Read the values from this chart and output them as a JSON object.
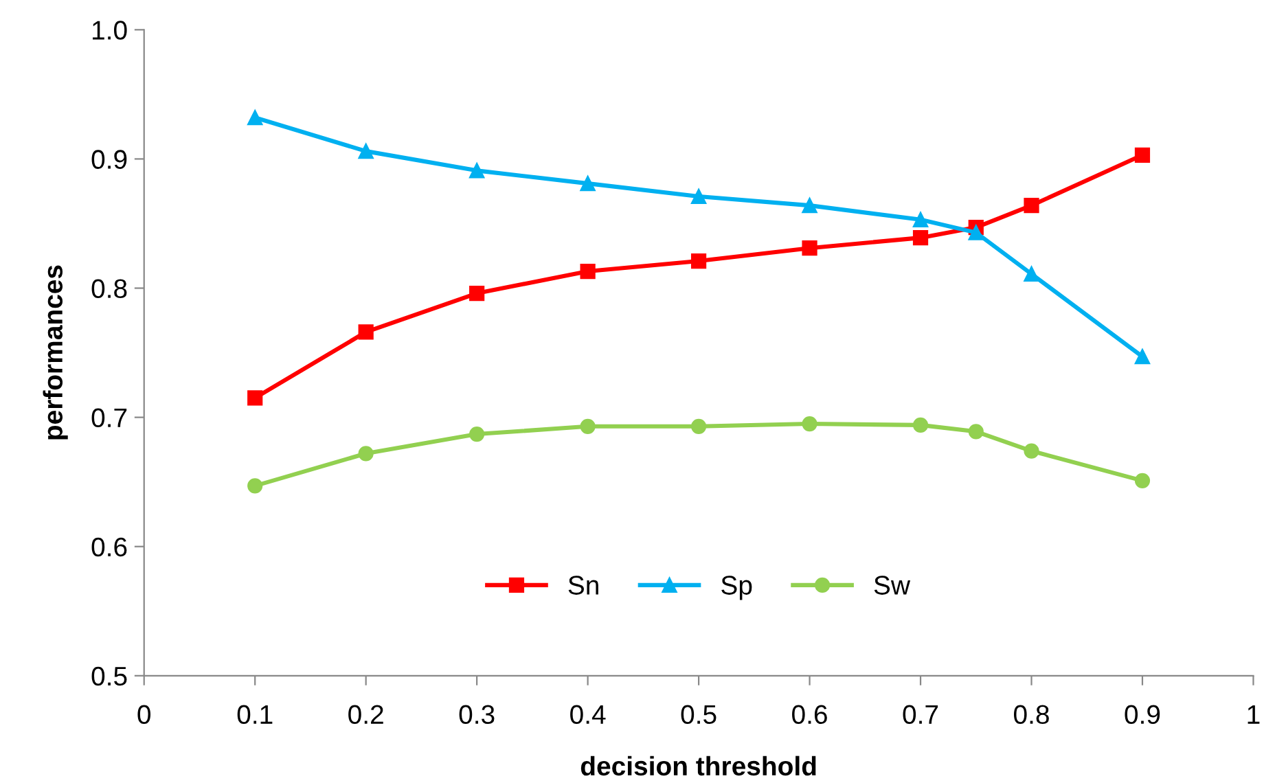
{
  "chart_data": {
    "type": "line",
    "xlabel": "decision threshold",
    "ylabel": "performances",
    "x": [
      0.1,
      0.2,
      0.3,
      0.4,
      0.5,
      0.6,
      0.7,
      0.75,
      0.8,
      0.9
    ],
    "series": [
      {
        "name": "Sn",
        "color": "#ff0000",
        "marker": "square",
        "values": [
          0.715,
          0.766,
          0.796,
          0.813,
          0.821,
          0.831,
          0.839,
          0.847,
          0.864,
          0.903
        ]
      },
      {
        "name": "Sp",
        "color": "#00b0f0",
        "marker": "triangle",
        "values": [
          0.932,
          0.906,
          0.891,
          0.881,
          0.871,
          0.864,
          0.853,
          0.843,
          0.811,
          0.747
        ]
      },
      {
        "name": "Sw",
        "color": "#92d050",
        "marker": "circle",
        "values": [
          0.647,
          0.672,
          0.687,
          0.693,
          0.693,
          0.695,
          0.694,
          0.689,
          0.674,
          0.651
        ]
      }
    ],
    "xlim": [
      0,
      1
    ],
    "ylim": [
      0.5,
      1.0
    ],
    "xticks": [
      0,
      0.1,
      0.2,
      0.3,
      0.4,
      0.5,
      0.6,
      0.7,
      0.8,
      0.9,
      1
    ],
    "yticks": [
      0.5,
      0.6,
      0.7,
      0.8,
      0.9,
      {
        "value": 1.0,
        "label": "1.0"
      }
    ],
    "grid": false,
    "legend": "bottom",
    "line_style": "solid"
  }
}
